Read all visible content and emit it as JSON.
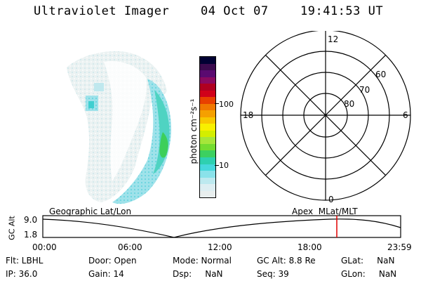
{
  "header": {
    "instrument": "Ultraviolet Imager",
    "date": "04 Oct 07",
    "time": "19:41:53 UT"
  },
  "colorbar": {
    "label": "photon cm⁻²s⁻¹",
    "ticks": [
      "100",
      "10"
    ],
    "colors": [
      "#000033",
      "#3b0a4e",
      "#5a0a70",
      "#8a0a60",
      "#b00020",
      "#d0001a",
      "#e84000",
      "#f07800",
      "#f5a000",
      "#f8c800",
      "#f8f000",
      "#d4ee00",
      "#a6e63a",
      "#74dc30",
      "#3cd060",
      "#2ed0b0",
      "#46d8dc",
      "#8ae2ea",
      "#bde9ef",
      "#ddeef2",
      "#e8eeee"
    ]
  },
  "polar_grid": {
    "clock_labels": [
      "12",
      "6",
      "0",
      "18"
    ],
    "lat_labels": [
      "60",
      "70",
      "80"
    ]
  },
  "timeline": {
    "axis_label": "GC Alt",
    "left_title": "Geographic Lat/Lon",
    "right_title": "Apex  MLat/MLT",
    "y_ticks": [
      "9.0",
      "1.8"
    ],
    "x_ticks": [
      "00:00",
      "06:00",
      "12:00",
      "18:00",
      "23:59"
    ],
    "cursor_color": "#e00000"
  },
  "status": {
    "flt": "Flt: LBHL",
    "ip": "IP: 36.0",
    "door": "Door: Open",
    "gain": "Gain: 14",
    "mode": "Mode: Normal",
    "dsp": "Dsp:     NaN",
    "gc_alt": "GC Alt: 8.8 Re",
    "seq": "Seq: 39",
    "glat": "GLat:     NaN",
    "glon": "GLon:     NaN"
  }
}
